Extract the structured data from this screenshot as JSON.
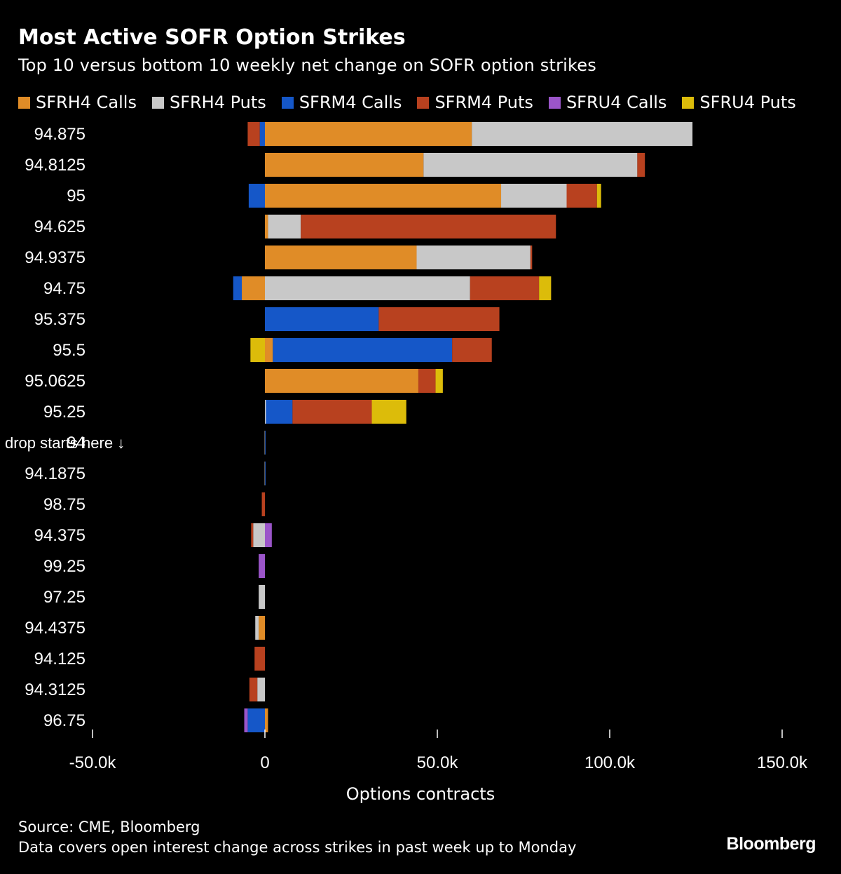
{
  "header": {
    "title": "Most Active SOFR Option Strikes",
    "subtitle": "Top 10 versus bottom 10 weekly net change on SOFR option strikes"
  },
  "colors": {
    "background": "#000000",
    "SFRH4 Calls": "#e08c27",
    "SFRH4 Puts": "#c8c8c8",
    "SFRM4 Calls": "#1557c8",
    "SFRM4 Puts": "#b8411f",
    "SFRU4 Calls": "#9b55c9",
    "SFRU4 Puts": "#dcbc0a"
  },
  "chart_data": {
    "type": "bar",
    "orientation": "horizontal",
    "stacked": true,
    "title": "Most Active SOFR Option Strikes",
    "subtitle": "Top 10 versus bottom 10 weekly net change on SOFR option strikes",
    "xlabel": "Options contracts",
    "ylabel": "",
    "xlim": [
      -50000,
      150000
    ],
    "xticks": [
      -50000,
      0,
      50000,
      100000,
      150000
    ],
    "xtick_labels": [
      "-50.0k",
      "0",
      "50.0k",
      "100.0k",
      "150.0k"
    ],
    "legend_position": "top",
    "categories": [
      "94.875",
      "94.8125",
      "95",
      "94.625",
      "94.9375",
      "94.75",
      "95.375",
      "95.5",
      "95.0625",
      "95.25",
      "94",
      "94.1875",
      "98.75",
      "94.375",
      "99.25",
      "97.25",
      "94.4375",
      "94.125",
      "94.3125",
      "96.75"
    ],
    "series": [
      {
        "name": "SFRH4 Calls",
        "values": [
          60000,
          46000,
          68500,
          900,
          44000,
          -6700,
          0,
          2300,
          44500,
          0,
          0,
          0,
          0,
          0,
          0,
          0,
          -1800,
          0,
          0,
          900
        ]
      },
      {
        "name": "SFRH4 Puts",
        "values": [
          64000,
          62000,
          19000,
          9500,
          33000,
          59500,
          0,
          0,
          0,
          300,
          0,
          0,
          0,
          -3400,
          0,
          -1800,
          -1000,
          0,
          -2200,
          0
        ]
      },
      {
        "name": "SFRM4 Calls",
        "values": [
          -1500,
          0,
          -4700,
          0,
          0,
          -2500,
          33000,
          52000,
          0,
          7700,
          200,
          200,
          0,
          0,
          0,
          0,
          0,
          0,
          0,
          -5000
        ]
      },
      {
        "name": "SFRM4 Puts",
        "values": [
          -3500,
          2200,
          8800,
          74000,
          500,
          20000,
          35000,
          11500,
          5000,
          23000,
          0,
          0,
          -900,
          -600,
          0,
          0,
          0,
          -3000,
          -2300,
          0
        ]
      },
      {
        "name": "SFRU4 Calls",
        "values": [
          0,
          0,
          0,
          0,
          0,
          0,
          0,
          0,
          0,
          0,
          0,
          0,
          0,
          2000,
          -1800,
          0,
          0,
          0,
          0,
          -1000
        ]
      },
      {
        "name": "SFRU4 Puts",
        "values": [
          0,
          0,
          1200,
          0,
          0,
          3500,
          0,
          -4200,
          2100,
          10000,
          0,
          0,
          0,
          0,
          0,
          0,
          0,
          0,
          0,
          0
        ]
      }
    ],
    "annotation": "drop starts here ↓",
    "annotation_category": "94"
  },
  "footer": {
    "source": "Source: CME, Bloomberg",
    "note": "Data covers open interest change across strikes in past week up to Monday",
    "brand": "Bloomberg"
  }
}
